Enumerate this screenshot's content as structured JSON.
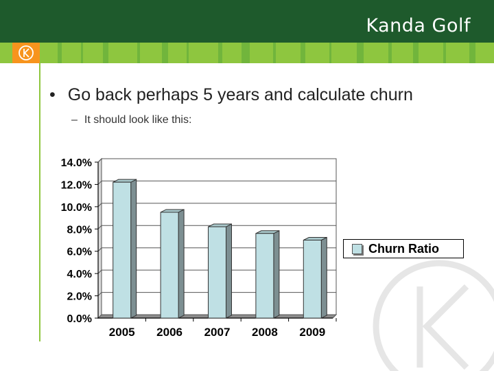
{
  "brand": {
    "name": "Kanda Golf"
  },
  "colors": {
    "header": "#1e5a2c",
    "stripe": "#8ec63f",
    "stripe_dark": "#5aa83a",
    "accent": "#f7941d",
    "bar_face": "#bfe0e4",
    "bar_side": "#7d8f92"
  },
  "icons": {
    "logo": "k-circle-logo-icon",
    "watermark": "k-circle-watermark-icon"
  },
  "slide": {
    "bullet_marker": "•",
    "bullet_text": "Go back perhaps 5 years and calculate churn",
    "sub_marker": "–",
    "sub_text": "It should look like this:"
  },
  "chart_data": {
    "type": "bar",
    "categories": [
      "2005",
      "2006",
      "2007",
      "2008",
      "2009"
    ],
    "series": [
      {
        "name": "Churn Ratio",
        "values": [
          12.2,
          9.5,
          8.2,
          7.6,
          7.0
        ]
      }
    ],
    "ylim": [
      0,
      14
    ],
    "yticks": [
      "0.0%",
      "2.0%",
      "4.0%",
      "6.0%",
      "8.0%",
      "10.0%",
      "12.0%",
      "14.0%"
    ],
    "grid": true,
    "legend": "right",
    "title": "",
    "xlabel": "",
    "ylabel": ""
  }
}
